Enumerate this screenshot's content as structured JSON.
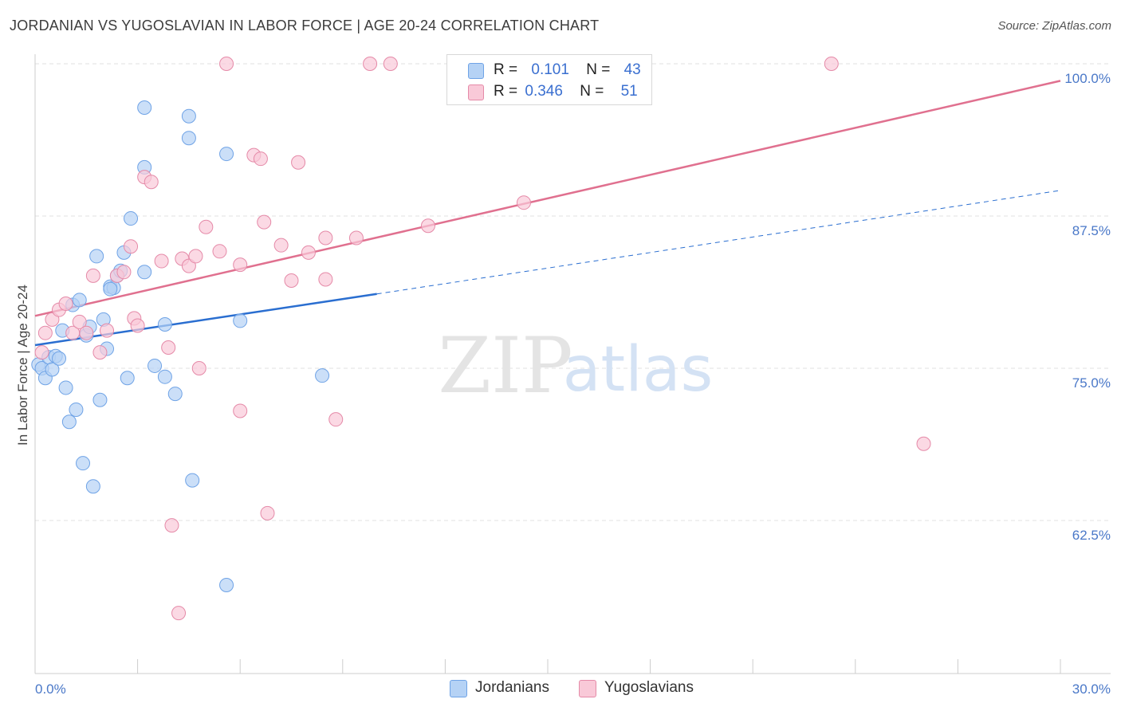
{
  "title": "JORDANIAN VS YUGOSLAVIAN IN LABOR FORCE | AGE 20-24 CORRELATION CHART",
  "source": "Source: ZipAtlas.com",
  "watermark": {
    "zip": "ZIP",
    "atlas": "atlas"
  },
  "legend": {
    "jordanians": {
      "r_label": "R =",
      "r_value": "0.101",
      "n_label": "N =",
      "n_value": "43",
      "color": "#9ec3f0"
    },
    "yugoslavians": {
      "r_label": "R =",
      "r_value": "0.346",
      "n_label": "N =",
      "n_value": "51",
      "color": "#f5b8cc"
    }
  },
  "bottom_legend": {
    "jordanians": "Jordanians",
    "yugoslavians": "Yugoslavians"
  },
  "chart_data": {
    "type": "scatter",
    "xlabel": "",
    "ylabel": "In Labor Force | Age 20-24",
    "xlim": [
      0,
      30
    ],
    "ylim": [
      50,
      100
    ],
    "x_tick_labels": {
      "min": "0.0%",
      "max": "30.0%"
    },
    "y_ticks": [
      {
        "value": 100,
        "label": "100.0%"
      },
      {
        "value": 87.5,
        "label": "87.5%"
      },
      {
        "value": 75,
        "label": "75.0%"
      },
      {
        "value": 62.5,
        "label": "62.5%"
      }
    ],
    "grid": true,
    "series": [
      {
        "name": "Jordanians",
        "color": "#6fa3e6",
        "fill": "#b5d2f5",
        "trend": {
          "x0": 0,
          "y0": 76.9,
          "x1": 10.0,
          "y1": 81.1,
          "dash_to_x": 30,
          "dash_to_y": 89.6,
          "color": "#2a6ed0"
        },
        "points": [
          [
            0.1,
            75.3
          ],
          [
            0.2,
            75.0
          ],
          [
            0.3,
            74.2
          ],
          [
            0.4,
            75.9
          ],
          [
            0.5,
            74.9
          ],
          [
            0.6,
            76.0
          ],
          [
            0.7,
            75.8
          ],
          [
            0.8,
            78.1
          ],
          [
            0.9,
            73.4
          ],
          [
            1.0,
            70.6
          ],
          [
            1.1,
            80.2
          ],
          [
            1.2,
            71.6
          ],
          [
            1.3,
            80.6
          ],
          [
            1.4,
            67.2
          ],
          [
            1.5,
            77.7
          ],
          [
            1.6,
            78.4
          ],
          [
            1.7,
            65.3
          ],
          [
            1.8,
            84.2
          ],
          [
            1.9,
            72.4
          ],
          [
            2.0,
            79.0
          ],
          [
            2.1,
            76.6
          ],
          [
            2.2,
            81.7
          ],
          [
            2.3,
            81.6
          ],
          [
            2.4,
            82.6
          ],
          [
            2.5,
            83.0
          ],
          [
            2.6,
            84.5
          ],
          [
            2.7,
            74.2
          ],
          [
            2.8,
            87.3
          ],
          [
            3.2,
            91.5
          ],
          [
            3.2,
            82.9
          ],
          [
            3.5,
            75.2
          ],
          [
            3.8,
            78.6
          ],
          [
            3.8,
            74.3
          ],
          [
            4.1,
            72.9
          ],
          [
            4.5,
            95.7
          ],
          [
            4.5,
            93.9
          ],
          [
            4.6,
            65.8
          ],
          [
            5.6,
            57.2
          ],
          [
            5.6,
            92.6
          ],
          [
            6.0,
            78.9
          ],
          [
            8.4,
            74.4
          ],
          [
            3.2,
            96.4
          ],
          [
            2.2,
            81.5
          ]
        ]
      },
      {
        "name": "Yugoslavians",
        "color": "#e58aa8",
        "fill": "#f9c9d8",
        "trend": {
          "x0": 0,
          "y0": 79.3,
          "x1": 30,
          "y1": 98.6,
          "color": "#e0708f"
        },
        "points": [
          [
            0.2,
            76.3
          ],
          [
            0.3,
            77.9
          ],
          [
            0.5,
            79.0
          ],
          [
            0.7,
            79.8
          ],
          [
            0.9,
            80.3
          ],
          [
            1.1,
            77.9
          ],
          [
            1.3,
            78.8
          ],
          [
            1.5,
            77.9
          ],
          [
            1.7,
            82.6
          ],
          [
            1.9,
            76.3
          ],
          [
            2.1,
            78.1
          ],
          [
            2.4,
            82.6
          ],
          [
            2.6,
            82.9
          ],
          [
            2.8,
            85.0
          ],
          [
            2.9,
            79.1
          ],
          [
            3.0,
            78.5
          ],
          [
            3.2,
            90.7
          ],
          [
            3.4,
            90.3
          ],
          [
            3.7,
            83.8
          ],
          [
            3.9,
            76.7
          ],
          [
            4.0,
            62.1
          ],
          [
            4.2,
            54.9
          ],
          [
            4.3,
            84.0
          ],
          [
            4.5,
            83.4
          ],
          [
            4.7,
            84.2
          ],
          [
            4.8,
            75.0
          ],
          [
            5.0,
            86.6
          ],
          [
            5.4,
            84.6
          ],
          [
            5.6,
            100.0
          ],
          [
            6.0,
            71.5
          ],
          [
            6.0,
            83.5
          ],
          [
            6.4,
            92.5
          ],
          [
            6.6,
            92.2
          ],
          [
            6.7,
            87.0
          ],
          [
            6.8,
            63.1
          ],
          [
            7.2,
            85.1
          ],
          [
            7.5,
            82.2
          ],
          [
            7.7,
            91.9
          ],
          [
            8.0,
            84.5
          ],
          [
            8.5,
            85.7
          ],
          [
            8.5,
            82.3
          ],
          [
            8.8,
            70.8
          ],
          [
            9.4,
            85.7
          ],
          [
            9.8,
            100.0
          ],
          [
            10.4,
            100.0
          ],
          [
            13.4,
            100.0
          ],
          [
            14.4,
            100.0
          ],
          [
            11.5,
            86.7
          ],
          [
            14.3,
            88.6
          ],
          [
            23.3,
            100.0
          ],
          [
            26.0,
            68.8
          ]
        ]
      }
    ]
  }
}
